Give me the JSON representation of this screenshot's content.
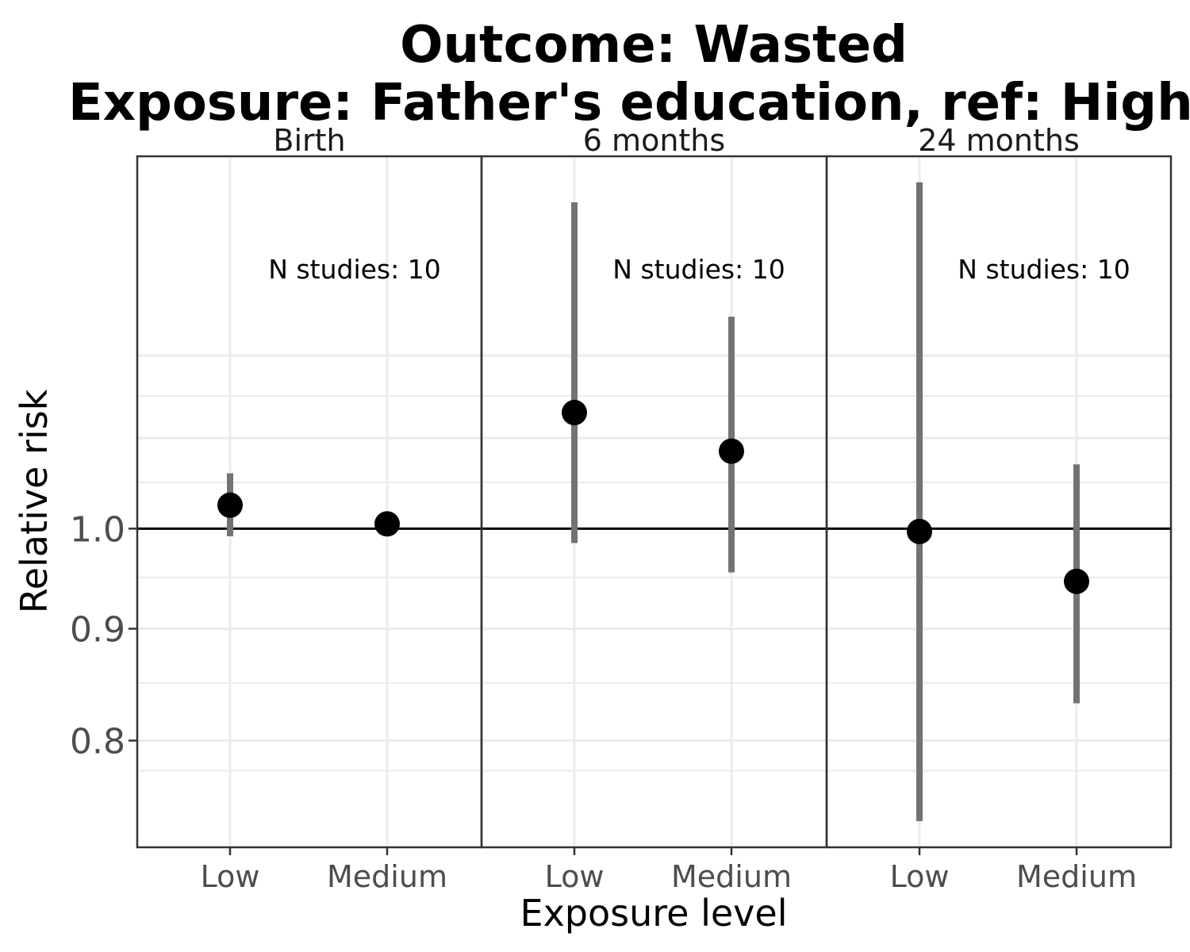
{
  "chart_data": {
    "type": "scatter",
    "title_lines": [
      "Outcome: Wasted",
      "Exposure: Father's education, ref: High"
    ],
    "xlabel": "Exposure level",
    "ylabel": "Relative risk",
    "categories": [
      "Low",
      "Medium"
    ],
    "y_scale": "log",
    "ylim": [
      0.715,
      1.48
    ],
    "y_ticks": [
      0.8,
      0.9,
      1.0
    ],
    "y_tick_labels": [
      "0.8",
      "0.9",
      "1.0"
    ],
    "reference_line": 1.0,
    "grid": true,
    "facets": [
      {
        "label": "Birth",
        "annotation": "N studies: 10",
        "points": [
          {
            "category": "Low",
            "estimate": 1.025,
            "lower": 0.992,
            "upper": 1.06
          },
          {
            "category": "Medium",
            "estimate": 1.005,
            "lower": 0.999,
            "upper": 1.01
          }
        ]
      },
      {
        "label": "6 months",
        "annotation": "N studies: 10",
        "points": [
          {
            "category": "Low",
            "estimate": 1.13,
            "lower": 0.985,
            "upper": 1.41
          },
          {
            "category": "Medium",
            "estimate": 1.085,
            "lower": 0.955,
            "upper": 1.25
          }
        ]
      },
      {
        "label": "24 months",
        "annotation": "N studies: 10",
        "points": [
          {
            "category": "Low",
            "estimate": 0.997,
            "lower": 0.735,
            "upper": 1.44
          },
          {
            "category": "Medium",
            "estimate": 0.946,
            "lower": 0.832,
            "upper": 1.07
          }
        ]
      }
    ]
  }
}
